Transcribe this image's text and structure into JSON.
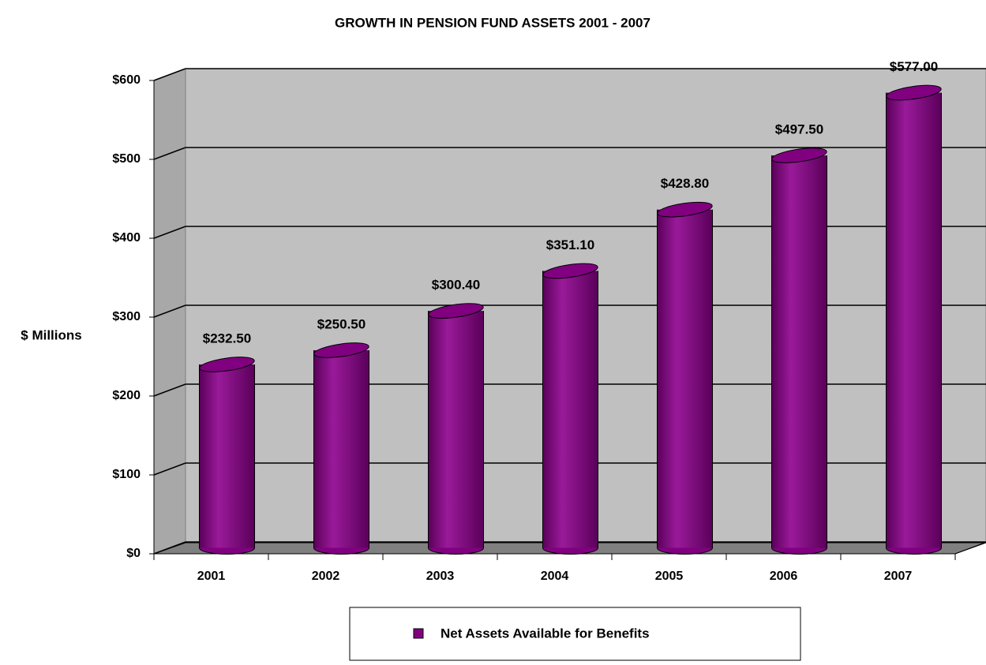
{
  "chart_data": {
    "type": "bar",
    "title": "GROWTH IN PENSION FUND ASSETS 2001 - 2007",
    "y_label": "$ Millions",
    "categories": [
      "2001",
      "2002",
      "2003",
      "2004",
      "2005",
      "2006",
      "2007"
    ],
    "series": [
      {
        "name": "Net Assets Available for Benefits",
        "color": "#800080",
        "values": [
          232.5,
          250.5,
          300.4,
          351.1,
          428.8,
          497.5,
          577.0
        ],
        "value_labels": [
          "$232.50",
          "$250.50",
          "$300.40",
          "$351.10",
          "$428.80",
          "$497.50",
          "$577.00"
        ]
      }
    ],
    "ylim": [
      0,
      600
    ],
    "yticks": [
      {
        "value": 0,
        "label": "$0"
      },
      {
        "value": 100,
        "label": "$100"
      },
      {
        "value": 200,
        "label": "$200"
      },
      {
        "value": 300,
        "label": "$300"
      },
      {
        "value": 400,
        "label": "$400"
      },
      {
        "value": 500,
        "label": "$500"
      },
      {
        "value": 600,
        "label": "$600"
      }
    ],
    "grid": true,
    "legend": "bottom"
  }
}
